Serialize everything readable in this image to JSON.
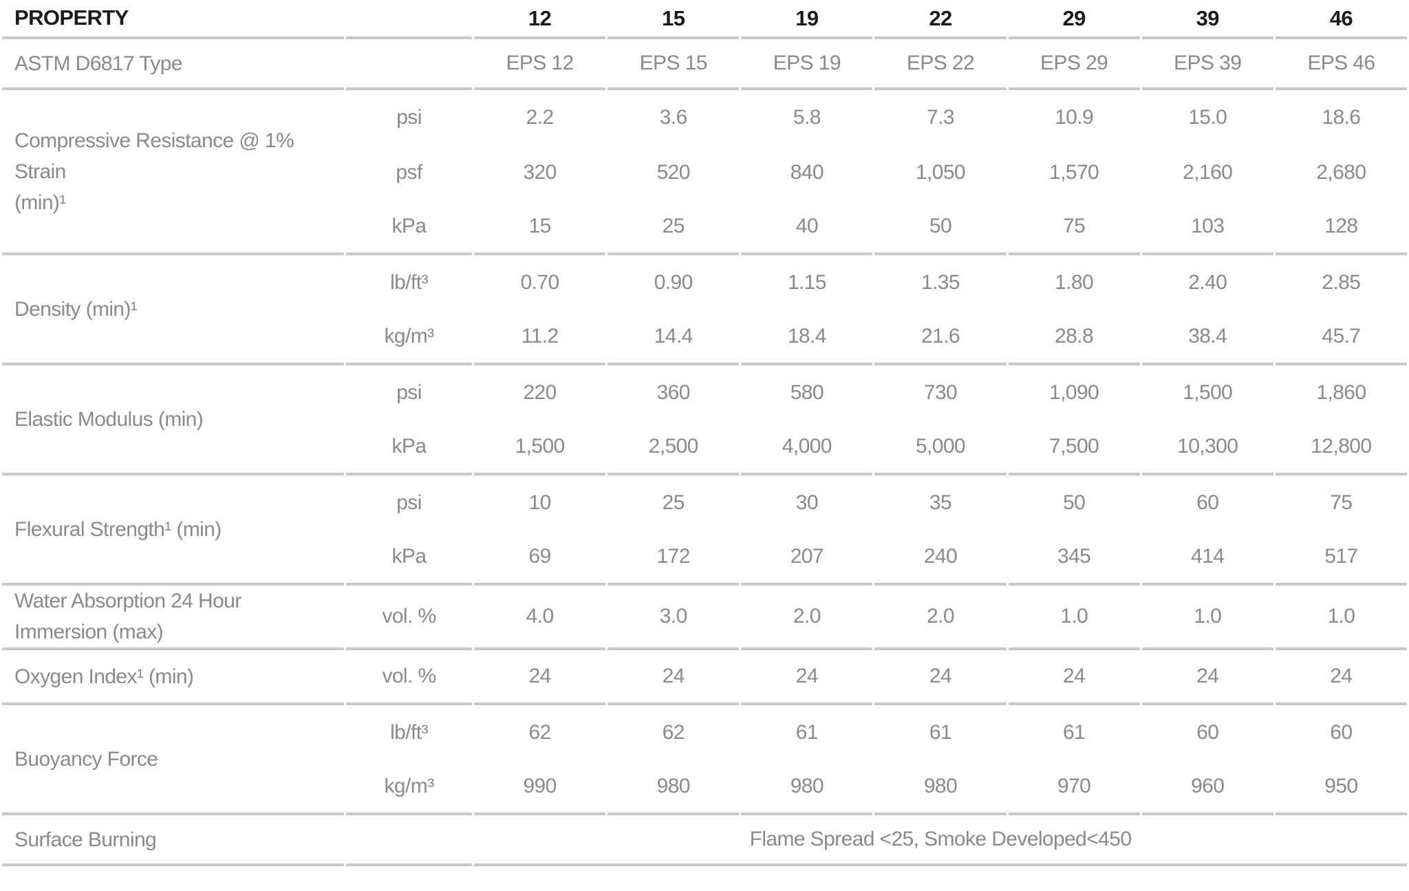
{
  "colors": {
    "text_gray": "#8a8a8a",
    "header_black": "#1b1b1b",
    "divider_gray": "#c9c9c9",
    "background": "#ffffff"
  },
  "table": {
    "header": {
      "property_label": "PROPERTY",
      "columns": [
        "12",
        "15",
        "19",
        "22",
        "29",
        "39",
        "46"
      ]
    },
    "type_row": {
      "label": "ASTM D6817 Type",
      "values": [
        "EPS 12",
        "EPS 15",
        "EPS 19",
        "EPS 22",
        "EPS 29",
        "EPS 39",
        "EPS 46"
      ]
    },
    "sections": [
      {
        "label": "Compressive Resistance @ 1% Strain\n(min)¹",
        "rows": [
          {
            "unit": "psi",
            "values": [
              "2.2",
              "3.6",
              "5.8",
              "7.3",
              "10.9",
              "15.0",
              "18.6"
            ]
          },
          {
            "unit": "psf",
            "values": [
              "320",
              "520",
              "840",
              "1,050",
              "1,570",
              "2,160",
              "2,680"
            ]
          },
          {
            "unit": "kPa",
            "values": [
              "15",
              "25",
              "40",
              "50",
              "75",
              "103",
              "128"
            ]
          }
        ]
      },
      {
        "label": "Density (min)¹",
        "rows": [
          {
            "unit": "lb/ft³",
            "values": [
              "0.70",
              "0.90",
              "1.15",
              "1.35",
              "1.80",
              "2.40",
              "2.85"
            ]
          },
          {
            "unit": "kg/m³",
            "values": [
              "11.2",
              "14.4",
              "18.4",
              "21.6",
              "28.8",
              "38.4",
              "45.7"
            ]
          }
        ]
      },
      {
        "label": "Elastic Modulus (min)",
        "rows": [
          {
            "unit": "psi",
            "values": [
              "220",
              "360",
              "580",
              "730",
              "1,090",
              "1,500",
              "1,860"
            ]
          },
          {
            "unit": "kPa",
            "values": [
              "1,500",
              "2,500",
              "4,000",
              "5,000",
              "7,500",
              "10,300",
              "12,800"
            ]
          }
        ]
      },
      {
        "label": "Flexural Strength¹ (min)",
        "rows": [
          {
            "unit": "psi",
            "values": [
              "10",
              "25",
              "30",
              "35",
              "50",
              "60",
              "75"
            ]
          },
          {
            "unit": "kPa",
            "values": [
              "69",
              "172",
              "207",
              "240",
              "345",
              "414",
              "517"
            ]
          }
        ]
      },
      {
        "label": "Water Absorption 24 Hour Immersion (max)",
        "rows": [
          {
            "unit": "vol. %",
            "values": [
              "4.0",
              "3.0",
              "2.0",
              "2.0",
              "1.0",
              "1.0",
              "1.0"
            ]
          }
        ]
      },
      {
        "label": "Oxygen Index¹ (min)",
        "rows": [
          {
            "unit": "vol. %",
            "values": [
              "24",
              "24",
              "24",
              "24",
              "24",
              "24",
              "24"
            ]
          }
        ]
      },
      {
        "label": "Buoyancy Force",
        "rows": [
          {
            "unit": "lb/ft³",
            "values": [
              "62",
              "62",
              "61",
              "61",
              "61",
              "60",
              "60"
            ]
          },
          {
            "unit": "kg/m³",
            "values": [
              "990",
              "980",
              "980",
              "980",
              "970",
              "960",
              "950"
            ]
          }
        ]
      }
    ],
    "surface_burning": {
      "label": "Surface Burning",
      "value": "Flame Spread <25,  Smoke Developed<450"
    }
  }
}
